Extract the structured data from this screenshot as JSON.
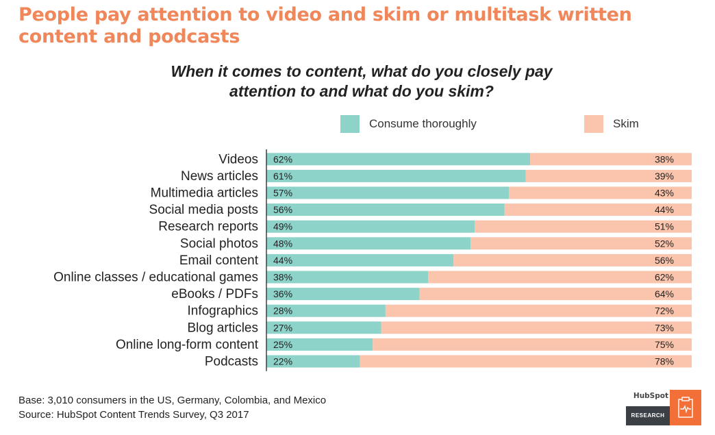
{
  "headline": {
    "line1": "People pay attention to video and skim or multitask written",
    "line2": "content and podcasts"
  },
  "chart_data": {
    "type": "bar",
    "orientation": "horizontal",
    "stacked": true,
    "title": "When it comes to content, what do you closely pay attention to and what do you skim?",
    "title_lines": [
      "When it comes to content, what do you closely pay",
      "attention to and what do you skim?"
    ],
    "categories": [
      "Videos",
      "News articles",
      "Multimedia articles",
      "Social media posts",
      "Research reports",
      "Social photos",
      "Email content",
      "Online classes / educational games",
      "eBooks / PDFs",
      "Infographics",
      "Blog articles",
      "Online long-form content",
      "Podcasts"
    ],
    "series": [
      {
        "name": "Consume thoroughly",
        "color": "#8dd3c9",
        "values": [
          62,
          61,
          57,
          56,
          49,
          48,
          44,
          38,
          36,
          28,
          27,
          25,
          22
        ],
        "labels": [
          "62%",
          "61%",
          "57%",
          "56%",
          "49%",
          "48%",
          "44%",
          "38%",
          "36%",
          "28%",
          "27%",
          "25%",
          "22%"
        ]
      },
      {
        "name": "Skim",
        "color": "#fbc4ad",
        "values": [
          38,
          39,
          43,
          44,
          51,
          52,
          56,
          62,
          64,
          72,
          73,
          75,
          78
        ],
        "labels": [
          "38%",
          "39%",
          "43%",
          "44%",
          "51%",
          "52%",
          "56%",
          "62%",
          "64%",
          "72%",
          "73%",
          "75%",
          "78%"
        ]
      }
    ],
    "xlim": [
      0,
      100
    ],
    "xlabel": "",
    "ylabel": "",
    "grid": false,
    "legend_position": "top"
  },
  "footer": {
    "base": "Base: 3,010 consumers in the US, Germany, Colombia, and Mexico",
    "source": "Source: HubSpot Content Trends Survey, Q3 2017"
  },
  "logo": {
    "brand": "HubSpot",
    "label": "RESEARCH",
    "icon": "clipboard-pulse-icon"
  },
  "colors": {
    "headline": "#f0875a",
    "axis": "#333333",
    "logo_accent": "#f36f38",
    "logo_dark": "#3b3f46"
  }
}
